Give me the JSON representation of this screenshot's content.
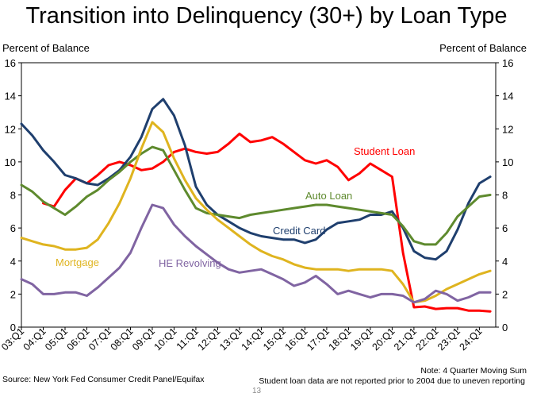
{
  "title": "Transition into Delinquency (30+) by Loan Type",
  "footer": {
    "source": "Source: New York Fed Consumer Credit Panel/Equifax",
    "note": "Note: 4 Quarter Moving Sum",
    "note2": "Student loan data are not reported prior to 2004 due to uneven reporting",
    "page_number": "13"
  },
  "chart_data": {
    "type": "line",
    "title": "Transition into Delinquency (30+) by Loan Type",
    "ylabel_left": "Percent of Balance",
    "ylabel_right": "Percent of Balance",
    "ylim": [
      0,
      16
    ],
    "yticks": [
      0,
      2,
      4,
      6,
      8,
      10,
      12,
      14,
      16
    ],
    "x_start": "2003Q1",
    "x_end": "2024Q3",
    "x_ticks": [
      "03:Q1",
      "04:Q1",
      "05:Q1",
      "06:Q1",
      "07:Q1",
      "08:Q1",
      "09:Q1",
      "10:Q1",
      "11:Q1",
      "12:Q1",
      "13:Q1",
      "14:Q1",
      "15:Q1",
      "16:Q1",
      "17:Q1",
      "18:Q1",
      "19:Q1",
      "20:Q1",
      "21:Q1",
      "22:Q1",
      "23:Q1",
      "24:Q1"
    ],
    "grid": false,
    "series": [
      {
        "name": "Student Loan",
        "color": "#ff0000",
        "points": [
          [
            4.0,
            7.5
          ],
          [
            4.5,
            7.3
          ],
          [
            5.0,
            8.3
          ],
          [
            5.5,
            9.0
          ],
          [
            6.0,
            8.7
          ],
          [
            6.5,
            9.2
          ],
          [
            7.0,
            9.8
          ],
          [
            7.5,
            10.0
          ],
          [
            8.0,
            9.8
          ],
          [
            8.5,
            9.5
          ],
          [
            9.0,
            9.6
          ],
          [
            9.5,
            10.0
          ],
          [
            10.0,
            10.6
          ],
          [
            10.5,
            10.8
          ],
          [
            11.0,
            10.6
          ],
          [
            11.5,
            10.5
          ],
          [
            12.0,
            10.6
          ],
          [
            12.5,
            11.1
          ],
          [
            13.0,
            11.7
          ],
          [
            13.5,
            11.2
          ],
          [
            14.0,
            11.3
          ],
          [
            14.5,
            11.5
          ],
          [
            15.0,
            11.1
          ],
          [
            15.5,
            10.6
          ],
          [
            16.0,
            10.1
          ],
          [
            16.5,
            9.9
          ],
          [
            17.0,
            10.1
          ],
          [
            17.5,
            9.7
          ],
          [
            18.0,
            8.9
          ],
          [
            18.5,
            9.3
          ],
          [
            19.0,
            9.9
          ],
          [
            19.5,
            9.5
          ],
          [
            20.0,
            9.1
          ],
          [
            20.5,
            4.5
          ],
          [
            21.0,
            1.2
          ],
          [
            21.5,
            1.25
          ],
          [
            22.0,
            1.1
          ],
          [
            22.5,
            1.15
          ],
          [
            23.0,
            1.15
          ],
          [
            23.5,
            1.0
          ],
          [
            24.0,
            1.0
          ],
          [
            24.5,
            0.95
          ]
        ]
      },
      {
        "name": "Credit Card",
        "color": "#1f3f6e",
        "points": [
          [
            3.0,
            12.3
          ],
          [
            3.5,
            11.6
          ],
          [
            4.0,
            10.7
          ],
          [
            4.5,
            10.0
          ],
          [
            5.0,
            9.2
          ],
          [
            5.5,
            9.0
          ],
          [
            6.0,
            8.7
          ],
          [
            6.5,
            8.6
          ],
          [
            7.0,
            9.0
          ],
          [
            7.5,
            9.5
          ],
          [
            8.0,
            10.3
          ],
          [
            8.5,
            11.5
          ],
          [
            9.0,
            13.2
          ],
          [
            9.5,
            13.8
          ],
          [
            10.0,
            12.8
          ],
          [
            10.5,
            11.0
          ],
          [
            11.0,
            8.5
          ],
          [
            11.5,
            7.4
          ],
          [
            12.0,
            6.8
          ],
          [
            12.5,
            6.4
          ],
          [
            13.0,
            6.0
          ],
          [
            13.5,
            5.7
          ],
          [
            14.0,
            5.5
          ],
          [
            14.5,
            5.4
          ],
          [
            15.0,
            5.3
          ],
          [
            15.5,
            5.3
          ],
          [
            16.0,
            5.1
          ],
          [
            16.5,
            5.3
          ],
          [
            17.0,
            5.9
          ],
          [
            17.5,
            6.3
          ],
          [
            18.0,
            6.4
          ],
          [
            18.5,
            6.5
          ],
          [
            19.0,
            6.8
          ],
          [
            19.5,
            6.8
          ],
          [
            20.0,
            7.0
          ],
          [
            20.5,
            6.0
          ],
          [
            21.0,
            4.6
          ],
          [
            21.5,
            4.2
          ],
          [
            22.0,
            4.1
          ],
          [
            22.5,
            4.6
          ],
          [
            23.0,
            5.9
          ],
          [
            23.5,
            7.5
          ],
          [
            24.0,
            8.7
          ],
          [
            24.5,
            9.1
          ]
        ]
      },
      {
        "name": "Auto Loan",
        "color": "#5e8a2e",
        "points": [
          [
            3.0,
            8.6
          ],
          [
            3.5,
            8.2
          ],
          [
            4.0,
            7.6
          ],
          [
            4.5,
            7.2
          ],
          [
            5.0,
            6.8
          ],
          [
            5.5,
            7.3
          ],
          [
            6.0,
            7.9
          ],
          [
            6.5,
            8.3
          ],
          [
            7.0,
            8.9
          ],
          [
            7.5,
            9.4
          ],
          [
            8.0,
            10.0
          ],
          [
            8.5,
            10.5
          ],
          [
            9.0,
            10.9
          ],
          [
            9.5,
            10.7
          ],
          [
            10.0,
            9.5
          ],
          [
            10.5,
            8.3
          ],
          [
            11.0,
            7.2
          ],
          [
            11.5,
            6.9
          ],
          [
            12.0,
            6.8
          ],
          [
            12.5,
            6.7
          ],
          [
            13.0,
            6.6
          ],
          [
            13.5,
            6.8
          ],
          [
            14.0,
            6.9
          ],
          [
            14.5,
            7.0
          ],
          [
            15.0,
            7.1
          ],
          [
            15.5,
            7.2
          ],
          [
            16.0,
            7.3
          ],
          [
            16.5,
            7.4
          ],
          [
            17.0,
            7.4
          ],
          [
            17.5,
            7.3
          ],
          [
            18.0,
            7.2
          ],
          [
            18.5,
            7.1
          ],
          [
            19.0,
            7.0
          ],
          [
            19.5,
            6.9
          ],
          [
            20.0,
            6.8
          ],
          [
            20.5,
            6.1
          ],
          [
            21.0,
            5.2
          ],
          [
            21.5,
            5.0
          ],
          [
            22.0,
            5.0
          ],
          [
            22.5,
            5.7
          ],
          [
            23.0,
            6.7
          ],
          [
            23.5,
            7.3
          ],
          [
            24.0,
            7.9
          ],
          [
            24.5,
            8.0
          ]
        ]
      },
      {
        "name": "Mortgage",
        "color": "#dfb41f",
        "points": [
          [
            3.0,
            5.4
          ],
          [
            3.5,
            5.2
          ],
          [
            4.0,
            5.0
          ],
          [
            4.5,
            4.9
          ],
          [
            5.0,
            4.7
          ],
          [
            5.5,
            4.7
          ],
          [
            6.0,
            4.8
          ],
          [
            6.5,
            5.3
          ],
          [
            7.0,
            6.3
          ],
          [
            7.5,
            7.5
          ],
          [
            8.0,
            9.0
          ],
          [
            8.5,
            10.8
          ],
          [
            9.0,
            12.4
          ],
          [
            9.5,
            11.8
          ],
          [
            10.0,
            10.2
          ],
          [
            10.5,
            8.9
          ],
          [
            11.0,
            7.8
          ],
          [
            11.5,
            7.1
          ],
          [
            12.0,
            6.5
          ],
          [
            12.5,
            6.0
          ],
          [
            13.0,
            5.5
          ],
          [
            13.5,
            5.0
          ],
          [
            14.0,
            4.6
          ],
          [
            14.5,
            4.3
          ],
          [
            15.0,
            4.1
          ],
          [
            15.5,
            3.8
          ],
          [
            16.0,
            3.6
          ],
          [
            16.5,
            3.5
          ],
          [
            17.0,
            3.5
          ],
          [
            17.5,
            3.5
          ],
          [
            18.0,
            3.4
          ],
          [
            18.5,
            3.5
          ],
          [
            19.0,
            3.5
          ],
          [
            19.5,
            3.5
          ],
          [
            20.0,
            3.4
          ],
          [
            20.5,
            2.6
          ],
          [
            21.0,
            1.5
          ],
          [
            21.5,
            1.6
          ],
          [
            22.0,
            1.9
          ],
          [
            22.5,
            2.3
          ],
          [
            23.0,
            2.6
          ],
          [
            23.5,
            2.9
          ],
          [
            24.0,
            3.2
          ],
          [
            24.5,
            3.4
          ]
        ]
      },
      {
        "name": "HE Revolving",
        "color": "#8064a2",
        "points": [
          [
            3.0,
            2.9
          ],
          [
            3.5,
            2.6
          ],
          [
            4.0,
            2.0
          ],
          [
            4.5,
            2.0
          ],
          [
            5.0,
            2.1
          ],
          [
            5.5,
            2.1
          ],
          [
            6.0,
            1.9
          ],
          [
            6.5,
            2.4
          ],
          [
            7.0,
            3.0
          ],
          [
            7.5,
            3.6
          ],
          [
            8.0,
            4.5
          ],
          [
            8.5,
            6.0
          ],
          [
            9.0,
            7.4
          ],
          [
            9.5,
            7.2
          ],
          [
            10.0,
            6.2
          ],
          [
            10.5,
            5.5
          ],
          [
            11.0,
            4.9
          ],
          [
            11.5,
            4.4
          ],
          [
            12.0,
            3.9
          ],
          [
            12.5,
            3.5
          ],
          [
            13.0,
            3.3
          ],
          [
            13.5,
            3.4
          ],
          [
            14.0,
            3.5
          ],
          [
            14.5,
            3.2
          ],
          [
            15.0,
            2.9
          ],
          [
            15.5,
            2.5
          ],
          [
            16.0,
            2.7
          ],
          [
            16.5,
            3.1
          ],
          [
            17.0,
            2.6
          ],
          [
            17.5,
            2.0
          ],
          [
            18.0,
            2.2
          ],
          [
            18.5,
            2.0
          ],
          [
            19.0,
            1.8
          ],
          [
            19.5,
            2.0
          ],
          [
            20.0,
            2.0
          ],
          [
            20.5,
            1.9
          ],
          [
            21.0,
            1.5
          ],
          [
            21.5,
            1.7
          ],
          [
            22.0,
            2.2
          ],
          [
            22.5,
            2.0
          ],
          [
            23.0,
            1.6
          ],
          [
            23.5,
            1.8
          ],
          [
            24.0,
            2.1
          ],
          [
            24.5,
            2.1
          ]
        ]
      }
    ]
  }
}
